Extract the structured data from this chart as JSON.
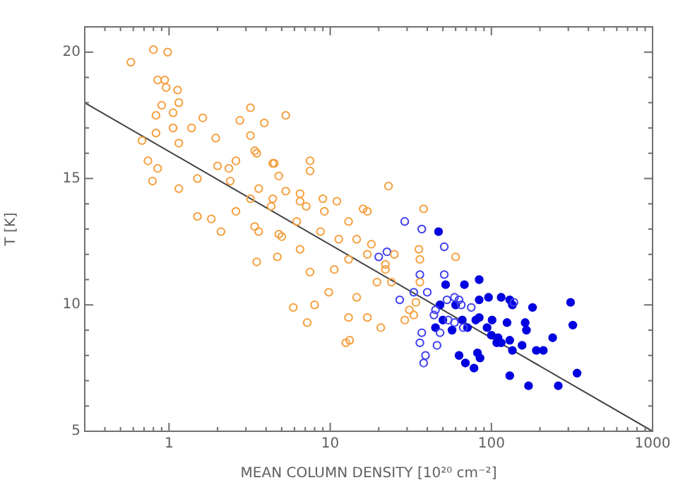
{
  "chart_data": {
    "type": "scatter",
    "xlabel": "MEAN COLUMN DENSITY [10²⁰ cm⁻²]",
    "ylabel": "T [K]",
    "log": "x",
    "grid": false,
    "legend": false,
    "marker": "circle",
    "xlim": [
      0.3,
      1000
    ],
    "ylim": [
      5,
      21
    ],
    "xticks": [
      {
        "value": 0.4,
        "label": null
      },
      {
        "value": 0.5,
        "label": null
      },
      {
        "value": 0.6,
        "label": null
      },
      {
        "value": 0.7,
        "label": null
      },
      {
        "value": 0.8,
        "label": null
      },
      {
        "value": 0.9,
        "label": null
      },
      1,
      {
        "value": 2,
        "label": null
      },
      {
        "value": 3,
        "label": null
      },
      {
        "value": 4,
        "label": null
      },
      {
        "value": 5,
        "label": null
      },
      {
        "value": 6,
        "label": null
      },
      {
        "value": 7,
        "label": null
      },
      {
        "value": 8,
        "label": null
      },
      {
        "value": 9,
        "label": null
      },
      10,
      {
        "value": 20,
        "label": null
      },
      {
        "value": 30,
        "label": null
      },
      {
        "value": 40,
        "label": null
      },
      {
        "value": 50,
        "label": null
      },
      {
        "value": 60,
        "label": null
      },
      {
        "value": 70,
        "label": null
      },
      {
        "value": 80,
        "label": null
      },
      {
        "value": 90,
        "label": null
      },
      100,
      {
        "value": 200,
        "label": null
      },
      {
        "value": 300,
        "label": null
      },
      {
        "value": 400,
        "label": null
      },
      {
        "value": 500,
        "label": null
      },
      {
        "value": 600,
        "label": null
      },
      {
        "value": 700,
        "label": null
      },
      {
        "value": 800,
        "label": null
      },
      {
        "value": 900,
        "label": null
      },
      1000
    ],
    "yticks": [
      5,
      {
        "value": 6,
        "label": null
      },
      {
        "value": 7,
        "label": null
      },
      {
        "value": 8,
        "label": null
      },
      {
        "value": 9,
        "label": null
      },
      10,
      {
        "value": 11,
        "label": null
      },
      {
        "value": 12,
        "label": null
      },
      {
        "value": 13,
        "label": null
      },
      {
        "value": 14,
        "label": null
      },
      15,
      {
        "value": 16,
        "label": null
      },
      {
        "value": 17,
        "label": null
      },
      {
        "value": 18,
        "label": null
      },
      {
        "value": 19,
        "label": null
      },
      20,
      {
        "value": 21,
        "label": null
      }
    ],
    "series": [
      {
        "color": "#f5a040",
        "x": [
          0.58,
          0.8,
          0.98,
          0.85,
          0.94,
          0.96,
          1.13,
          1.15,
          0.9,
          0.83,
          1.06,
          1.06,
          1.38,
          1.62,
          0.68,
          0.83,
          1.15,
          0.74,
          0.79,
          0.85,
          1.15,
          1.5,
          1.95,
          2.0,
          2.75,
          3.2,
          3.9,
          5.3,
          3.2,
          2.6,
          3.5,
          2.35,
          2.4,
          3.2,
          3.6,
          4.4,
          4.8,
          1.5,
          1.83,
          2.1,
          2.6,
          3.4,
          4.3,
          5.3,
          6.5,
          7.1,
          7.5,
          9.0,
          11,
          13,
          16,
          6.2,
          4.8,
          3.4,
          4.5,
          7.5,
          4.4,
          6.5,
          9.2,
          3.6,
          5.0,
          6.5,
          8.7,
          11.3,
          14.6,
          18,
          3.5,
          4.7,
          7.5,
          10.6,
          13,
          17,
          22,
          25,
          24,
          19.5,
          14.6,
          9.8,
          8.0,
          5.9,
          7.2,
          13,
          17,
          20.6,
          12.5,
          13.2,
          29,
          31,
          34,
          36,
          36,
          35.5,
          60,
          23,
          17,
          22,
          38,
          33
        ],
        "values": [
          19.6,
          20.1,
          20.0,
          18.9,
          18.9,
          18.6,
          18.5,
          18.0,
          17.9,
          17.5,
          17.6,
          17.0,
          17.0,
          17.4,
          16.5,
          16.8,
          16.4,
          15.7,
          14.9,
          15.4,
          14.6,
          15.0,
          16.6,
          15.5,
          17.3,
          17.8,
          17.2,
          17.5,
          16.7,
          15.7,
          16.0,
          15.4,
          14.9,
          14.2,
          14.6,
          15.6,
          15.1,
          13.5,
          13.4,
          12.9,
          13.7,
          13.1,
          13.9,
          14.5,
          14.4,
          13.9,
          15.7,
          14.2,
          14.1,
          13.3,
          13.8,
          13.3,
          12.8,
          16.1,
          15.6,
          15.3,
          14.2,
          14.1,
          13.7,
          12.9,
          12.7,
          12.2,
          12.9,
          12.6,
          12.6,
          12.4,
          11.7,
          11.9,
          11.3,
          11.4,
          11.8,
          12.0,
          11.4,
          12.0,
          10.9,
          10.9,
          10.3,
          10.5,
          10.0,
          9.9,
          9.3,
          9.5,
          9.5,
          9.1,
          8.5,
          8.6,
          9.4,
          9.8,
          10.1,
          10.9,
          11.8,
          12.2,
          11.9,
          14.7,
          13.7,
          11.6,
          13.8,
          9.6
        ]
      },
      {
        "color": "#4040f0",
        "x": [
          29,
          37,
          51,
          51,
          36,
          33,
          27,
          40,
          22.5,
          20,
          44,
          37,
          48,
          46,
          36,
          59,
          65,
          54,
          63,
          75,
          138,
          53,
          45,
          38,
          39,
          67,
          59
        ],
        "values": [
          13.3,
          13.0,
          12.3,
          11.2,
          11.2,
          10.5,
          10.2,
          10.5,
          12.1,
          11.9,
          9.6,
          8.9,
          8.9,
          8.4,
          8.5,
          10.3,
          10.0,
          9.4,
          10.2,
          9.9,
          10.1,
          10.2,
          9.8,
          7.7,
          8.0,
          9.1,
          9.3
        ]
      },
      {
        "color": "#0000e0",
        "x": [
          47,
          52,
          68,
          84,
          60,
          84,
          96,
          115,
          130,
          135,
          180,
          310,
          320,
          48,
          45,
          50,
          66,
          71,
          80,
          84,
          94,
          101,
          57,
          100,
          110,
          108,
          115,
          130,
          125,
          162,
          165,
          155,
          135,
          190,
          210,
          240,
          63,
          82,
          85,
          69,
          78,
          130,
          170,
          260,
          340
        ],
        "values": [
          12.9,
          10.8,
          10.8,
          11.0,
          10.0,
          10.2,
          10.3,
          10.3,
          10.2,
          10.0,
          9.9,
          10.1,
          9.2,
          10.0,
          9.1,
          9.4,
          9.4,
          9.1,
          9.4,
          9.5,
          9.1,
          9.4,
          9.0,
          8.8,
          8.7,
          8.5,
          8.5,
          8.6,
          9.3,
          9.3,
          9.0,
          8.4,
          8.2,
          8.2,
          8.2,
          8.7,
          8.0,
          8.1,
          7.9,
          7.7,
          7.5,
          7.2,
          6.8,
          6.8,
          7.3
        ]
      },
      {
        "type": "line",
        "color": "#404040",
        "marker": "none",
        "x": [
          0.3,
          1000
        ],
        "values": [
          18.0,
          5.0
        ]
      }
    ]
  }
}
